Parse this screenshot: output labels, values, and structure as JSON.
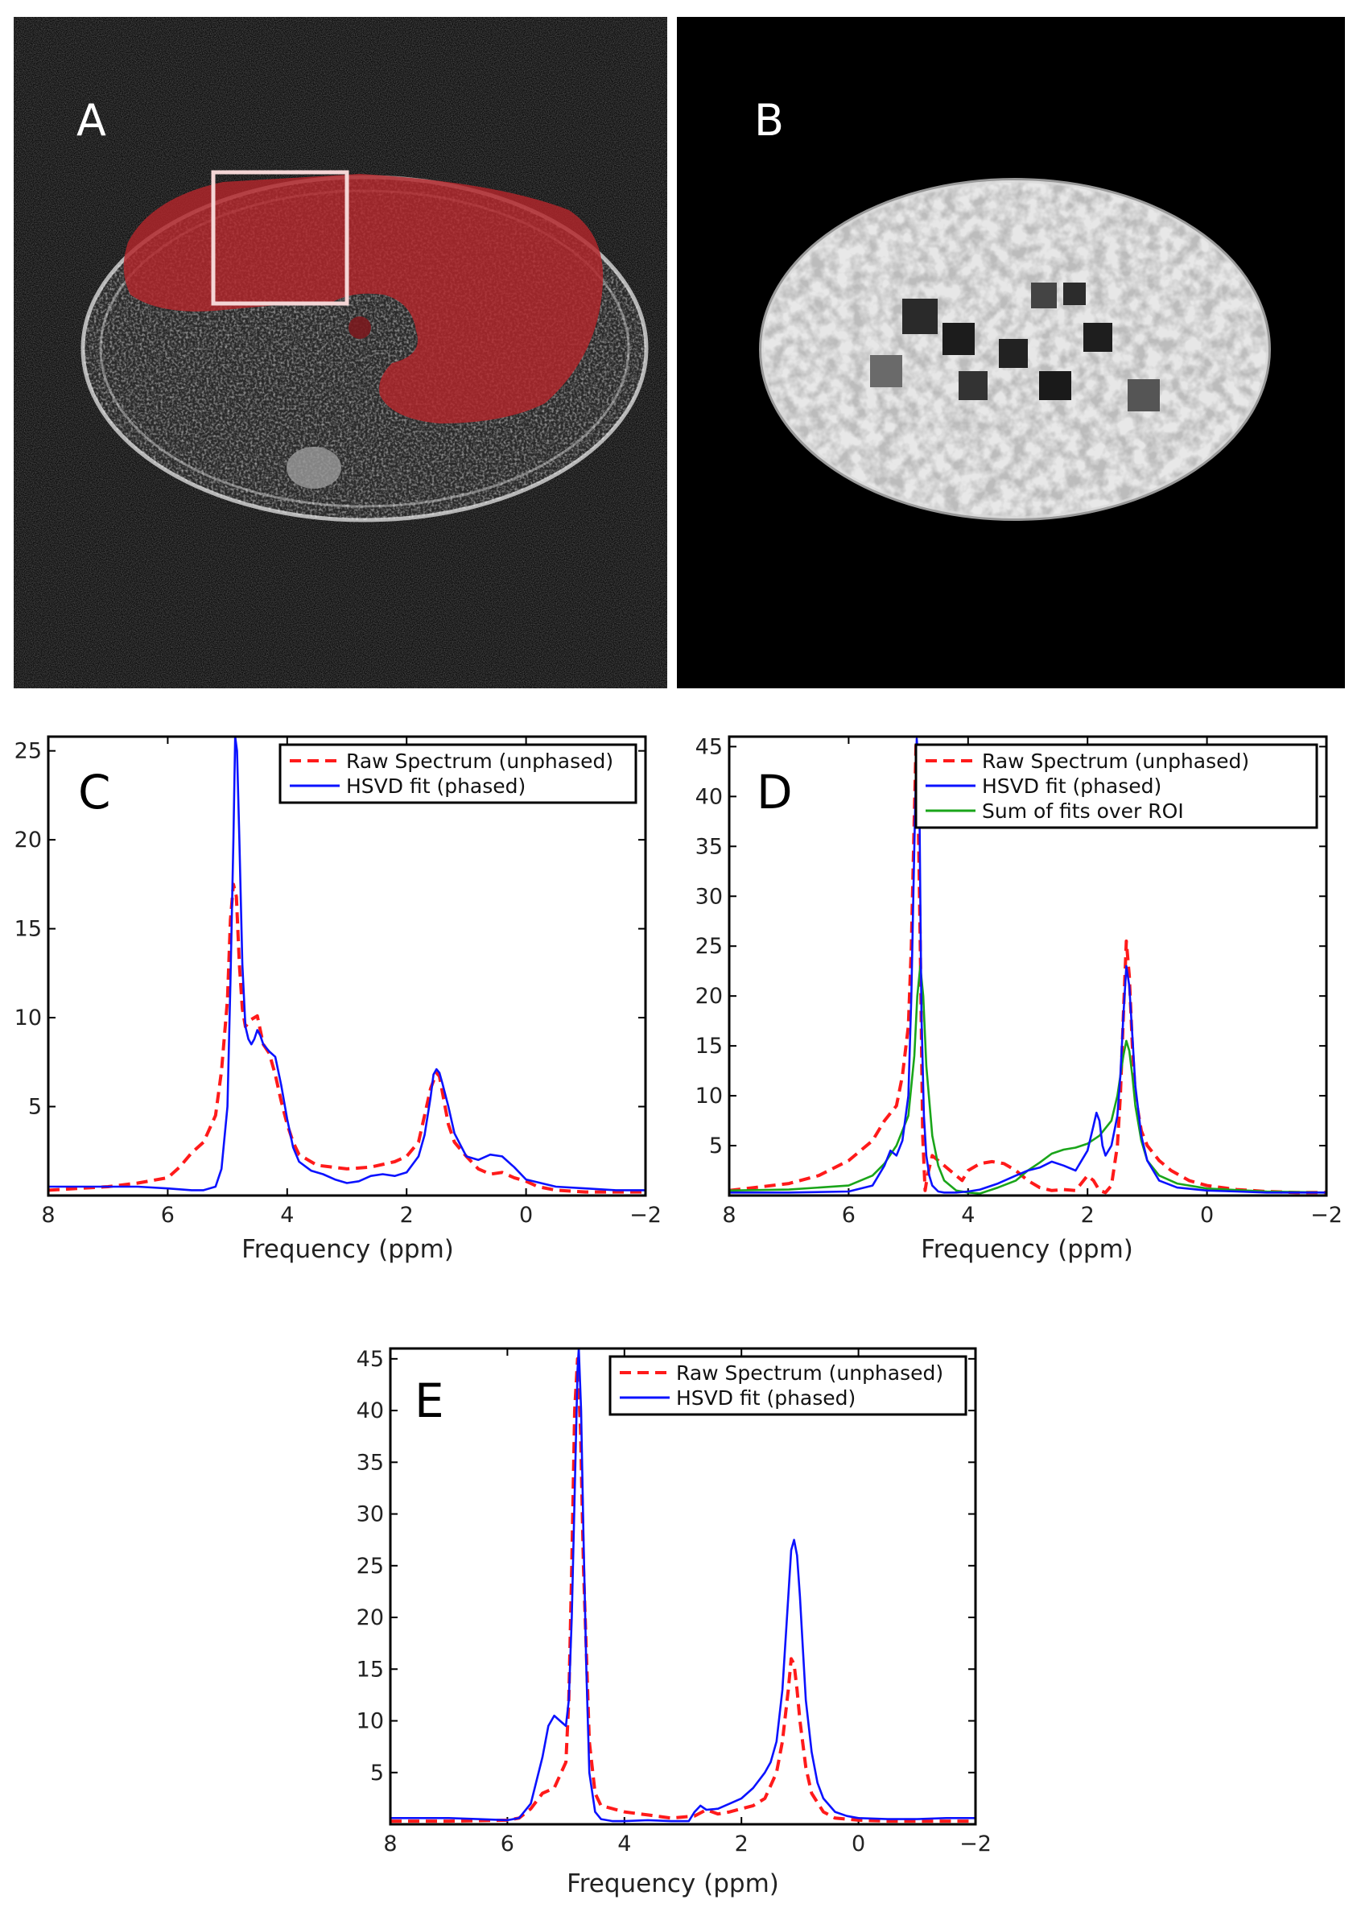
{
  "panels": {
    "A": {
      "label": "A"
    },
    "B": {
      "label": "B"
    }
  },
  "colors": {
    "raw": "#ff1a1a",
    "hsvd": "#0b12ff",
    "sum": "#1aa51a",
    "mask": "#b3262b"
  },
  "chart_data": [
    {
      "id": "C",
      "type": "line",
      "label": "C",
      "xlabel": "Frequency (ppm)",
      "ylabel": "",
      "xlim": [
        8,
        -2
      ],
      "ylim": [
        0,
        25.8
      ],
      "xticks": [
        8,
        6,
        4,
        2,
        0,
        -2
      ],
      "xtick_labels": [
        "8",
        "6",
        "4",
        "2",
        "0",
        "−2"
      ],
      "yticks": [
        5,
        10,
        15,
        20,
        25
      ],
      "ytick_labels": [
        "5",
        "10",
        "15",
        "20",
        "25"
      ],
      "legend": [
        "Raw Spectrum (unphased)",
        "HSVD fit (phased)"
      ],
      "series": [
        {
          "name": "Raw Spectrum (unphased)",
          "style": "dashed",
          "color": "#ff1a1a",
          "x": [
            8,
            7.5,
            7,
            6.5,
            6,
            5.8,
            5.6,
            5.4,
            5.2,
            5.1,
            5.0,
            4.95,
            4.9,
            4.85,
            4.8,
            4.75,
            4.7,
            4.6,
            4.5,
            4.4,
            4.3,
            4.2,
            4.1,
            4.0,
            3.9,
            3.8,
            3.5,
            3.0,
            2.6,
            2.2,
            2.0,
            1.8,
            1.7,
            1.6,
            1.5,
            1.45,
            1.4,
            1.3,
            1.2,
            1.1,
            1.0,
            0.8,
            0.6,
            0.4,
            0.2,
            0,
            -0.2,
            -0.5,
            -1,
            -1.5,
            -2
          ],
          "y": [
            0.3,
            0.4,
            0.5,
            0.7,
            1.0,
            1.6,
            2.4,
            3.0,
            4.5,
            7.0,
            11.0,
            15.5,
            17.5,
            16.8,
            13.0,
            10.5,
            9.5,
            9.9,
            10.1,
            8.5,
            8.0,
            6.8,
            5.3,
            4.0,
            3.0,
            2.3,
            1.7,
            1.5,
            1.6,
            1.9,
            2.2,
            3.0,
            4.5,
            6.0,
            6.9,
            6.7,
            5.8,
            4.0,
            3.0,
            2.6,
            2.2,
            1.5,
            1.2,
            1.3,
            1.0,
            0.8,
            0.5,
            0.3,
            0.2,
            0.2,
            0.2
          ]
        },
        {
          "name": "HSVD fit (phased)",
          "style": "solid",
          "color": "#0b12ff",
          "x": [
            8,
            7,
            6.5,
            6,
            5.6,
            5.4,
            5.2,
            5.1,
            5.0,
            4.95,
            4.9,
            4.87,
            4.84,
            4.8,
            4.75,
            4.7,
            4.65,
            4.6,
            4.55,
            4.5,
            4.45,
            4.4,
            4.3,
            4.2,
            4.1,
            4.0,
            3.9,
            3.8,
            3.6,
            3.4,
            3.2,
            3.0,
            2.8,
            2.6,
            2.4,
            2.2,
            2.0,
            1.8,
            1.7,
            1.6,
            1.55,
            1.5,
            1.45,
            1.4,
            1.3,
            1.2,
            1.0,
            0.8,
            0.6,
            0.4,
            0.2,
            0,
            -0.5,
            -1,
            -1.5,
            -2
          ],
          "y": [
            0.5,
            0.5,
            0.5,
            0.4,
            0.3,
            0.3,
            0.5,
            1.5,
            5.0,
            12.0,
            20.0,
            25.8,
            25.0,
            20.0,
            13.0,
            9.5,
            8.8,
            8.5,
            8.8,
            9.3,
            9.0,
            8.5,
            8.1,
            7.8,
            6.2,
            4.3,
            2.7,
            1.9,
            1.4,
            1.2,
            0.9,
            0.7,
            0.8,
            1.1,
            1.2,
            1.1,
            1.3,
            2.2,
            3.4,
            5.5,
            6.8,
            7.1,
            6.9,
            6.3,
            5.0,
            3.5,
            2.2,
            2.0,
            2.3,
            2.2,
            1.6,
            0.9,
            0.5,
            0.4,
            0.3,
            0.3
          ]
        }
      ]
    },
    {
      "id": "D",
      "type": "line",
      "label": "D",
      "xlabel": "Frequency (ppm)",
      "ylabel": "",
      "xlim": [
        8,
        -2
      ],
      "ylim": [
        0,
        46
      ],
      "xticks": [
        8,
        6,
        4,
        2,
        0,
        -2
      ],
      "xtick_labels": [
        "8",
        "6",
        "4",
        "2",
        "0",
        "−2"
      ],
      "yticks": [
        5,
        10,
        15,
        20,
        25,
        30,
        35,
        40,
        45
      ],
      "ytick_labels": [
        "5",
        "10",
        "15",
        "20",
        "25",
        "30",
        "35",
        "40",
        "45"
      ],
      "legend": [
        "Raw Spectrum (unphased)",
        "HSVD fit (phased)",
        "Sum of fits over ROI"
      ],
      "series": [
        {
          "name": "Raw Spectrum (unphased)",
          "style": "dashed",
          "color": "#ff1a1a",
          "x": [
            8,
            7,
            6.5,
            6,
            5.6,
            5.4,
            5.2,
            5.1,
            5.0,
            4.95,
            4.9,
            4.87,
            4.84,
            4.8,
            4.76,
            4.72,
            4.68,
            4.6,
            4.5,
            4.3,
            4.1,
            4.0,
            3.8,
            3.6,
            3.4,
            3.2,
            3.0,
            2.8,
            2.6,
            2.4,
            2.2,
            2.0,
            1.9,
            1.8,
            1.7,
            1.6,
            1.5,
            1.45,
            1.4,
            1.35,
            1.3,
            1.25,
            1.2,
            1.1,
            1.0,
            0.8,
            0.6,
            0.3,
            0,
            -0.5,
            -1,
            -1.5,
            -2
          ],
          "y": [
            0.5,
            1.2,
            2.0,
            3.5,
            5.5,
            7.5,
            9.0,
            12.0,
            17.0,
            25.0,
            38.0,
            45.5,
            40.0,
            25.0,
            6.0,
            0.5,
            2.0,
            4.0,
            3.5,
            2.5,
            1.5,
            2.5,
            3.2,
            3.4,
            3.2,
            2.5,
            1.5,
            0.8,
            0.5,
            0.6,
            0.5,
            2.0,
            1.5,
            0.5,
            0.3,
            1.0,
            5.0,
            10.0,
            18.0,
            25.5,
            22.0,
            15.0,
            10.0,
            6.5,
            5.0,
            3.5,
            2.5,
            1.5,
            1.0,
            0.6,
            0.4,
            0.3,
            0.3
          ]
        },
        {
          "name": "HSVD fit (phased)",
          "style": "solid",
          "color": "#0b12ff",
          "x": [
            8,
            7,
            6,
            5.6,
            5.4,
            5.3,
            5.2,
            5.1,
            5.0,
            4.95,
            4.9,
            4.86,
            4.82,
            4.8,
            4.78,
            4.74,
            4.7,
            4.65,
            4.6,
            4.5,
            4.4,
            4.2,
            4.0,
            3.8,
            3.5,
            3.2,
            3.0,
            2.8,
            2.6,
            2.4,
            2.2,
            2.1,
            2.0,
            1.9,
            1.85,
            1.8,
            1.75,
            1.7,
            1.6,
            1.5,
            1.45,
            1.4,
            1.35,
            1.3,
            1.25,
            1.2,
            1.1,
            1.0,
            0.8,
            0.5,
            0,
            -0.5,
            -1,
            -1.5,
            -2
          ],
          "y": [
            0.3,
            0.3,
            0.4,
            1.0,
            3.0,
            4.5,
            4.0,
            5.5,
            10.0,
            20.0,
            35.0,
            45.8,
            42.0,
            30.0,
            18.0,
            8.0,
            4.0,
            2.0,
            1.0,
            0.4,
            0.3,
            0.3,
            0.4,
            0.6,
            1.2,
            2.0,
            2.5,
            2.8,
            3.4,
            3.0,
            2.5,
            3.5,
            4.5,
            7.0,
            8.3,
            7.5,
            5.0,
            4.0,
            5.0,
            8.0,
            12.0,
            18.0,
            23.0,
            21.0,
            16.0,
            11.0,
            6.0,
            3.5,
            1.5,
            0.8,
            0.5,
            0.4,
            0.3,
            0.3,
            0.3
          ]
        },
        {
          "name": "Sum of fits over ROI",
          "style": "solid",
          "color": "#1aa51a",
          "x": [
            8,
            7,
            6,
            5.6,
            5.4,
            5.2,
            5.0,
            4.9,
            4.85,
            4.8,
            4.75,
            4.7,
            4.6,
            4.5,
            4.4,
            4.2,
            4.0,
            3.8,
            3.5,
            3.2,
            3.0,
            2.8,
            2.6,
            2.4,
            2.2,
            2.0,
            1.8,
            1.6,
            1.5,
            1.4,
            1.35,
            1.3,
            1.25,
            1.2,
            1.1,
            1.0,
            0.8,
            0.5,
            0,
            -1,
            -2
          ],
          "y": [
            0.5,
            0.6,
            1.0,
            2.0,
            3.2,
            5.0,
            8.0,
            14.0,
            20.0,
            23.0,
            20.0,
            13.0,
            6.0,
            3.0,
            1.5,
            0.5,
            0.3,
            0.2,
            0.8,
            1.5,
            2.5,
            3.3,
            4.2,
            4.6,
            4.8,
            5.2,
            6.0,
            7.5,
            10.0,
            14.0,
            15.5,
            14.5,
            12.0,
            9.0,
            5.5,
            3.5,
            2.0,
            1.2,
            0.7,
            0.4,
            0.3
          ]
        }
      ]
    },
    {
      "id": "E",
      "type": "line",
      "label": "E",
      "xlabel": "Frequency (ppm)",
      "ylabel": "",
      "xlim": [
        8,
        -2
      ],
      "ylim": [
        0,
        46
      ],
      "xticks": [
        8,
        6,
        4,
        2,
        0,
        -2
      ],
      "xtick_labels": [
        "8",
        "6",
        "4",
        "2",
        "0",
        "−2"
      ],
      "yticks": [
        5,
        10,
        15,
        20,
        25,
        30,
        35,
        40,
        45
      ],
      "ytick_labels": [
        "5",
        "10",
        "15",
        "20",
        "25",
        "30",
        "35",
        "40",
        "45"
      ],
      "legend": [
        "Raw Spectrum (unphased)",
        "HSVD fit (phased)"
      ],
      "series": [
        {
          "name": "Raw Spectrum (unphased)",
          "style": "dashed",
          "color": "#ff1a1a",
          "x": [
            8,
            7,
            6,
            5.8,
            5.6,
            5.4,
            5.2,
            5.0,
            4.95,
            4.9,
            4.85,
            4.8,
            4.75,
            4.7,
            4.6,
            4.5,
            4.4,
            4.2,
            4.0,
            3.6,
            3.2,
            2.8,
            2.6,
            2.4,
            2.2,
            2.0,
            1.8,
            1.6,
            1.4,
            1.3,
            1.2,
            1.15,
            1.1,
            1.05,
            1.0,
            0.9,
            0.8,
            0.6,
            0.4,
            0,
            -0.5,
            -1,
            -2
          ],
          "y": [
            0.3,
            0.3,
            0.4,
            0.6,
            1.5,
            3.0,
            3.5,
            6.0,
            12.0,
            25.0,
            40.0,
            45.0,
            38.0,
            25.0,
            8.0,
            3.0,
            1.8,
            1.5,
            1.2,
            0.9,
            0.6,
            0.8,
            1.4,
            1.0,
            1.2,
            1.5,
            1.8,
            2.5,
            5.0,
            8.0,
            13.0,
            16.0,
            15.5,
            13.0,
            10.0,
            5.5,
            3.0,
            1.2,
            0.6,
            0.4,
            0.3,
            0.3,
            0.3
          ]
        },
        {
          "name": "HSVD fit (phased)",
          "style": "solid",
          "color": "#0b12ff",
          "x": [
            8,
            7,
            6.5,
            6,
            5.8,
            5.6,
            5.4,
            5.3,
            5.2,
            5.1,
            5.0,
            4.95,
            4.9,
            4.85,
            4.8,
            4.78,
            4.74,
            4.7,
            4.65,
            4.6,
            4.5,
            4.4,
            4.2,
            4.0,
            3.6,
            3.2,
            2.9,
            2.8,
            2.7,
            2.6,
            2.4,
            2.2,
            2.0,
            1.8,
            1.6,
            1.5,
            1.4,
            1.3,
            1.2,
            1.15,
            1.1,
            1.05,
            1.0,
            0.95,
            0.9,
            0.8,
            0.7,
            0.6,
            0.4,
            0.2,
            0,
            -0.5,
            -1,
            -1.5,
            -2
          ],
          "y": [
            0.6,
            0.6,
            0.5,
            0.4,
            0.6,
            2.0,
            6.5,
            9.5,
            10.5,
            10.0,
            9.5,
            12.0,
            20.0,
            32.0,
            44.0,
            46.0,
            40.0,
            28.0,
            15.0,
            5.0,
            1.2,
            0.5,
            0.3,
            0.3,
            0.4,
            0.3,
            0.3,
            1.2,
            1.8,
            1.4,
            1.5,
            2.0,
            2.5,
            3.5,
            5.0,
            6.0,
            8.0,
            13.0,
            22.0,
            26.5,
            27.5,
            26.0,
            22.0,
            17.0,
            12.0,
            7.0,
            4.0,
            2.5,
            1.2,
            0.8,
            0.6,
            0.5,
            0.5,
            0.6,
            0.6
          ]
        }
      ]
    }
  ]
}
